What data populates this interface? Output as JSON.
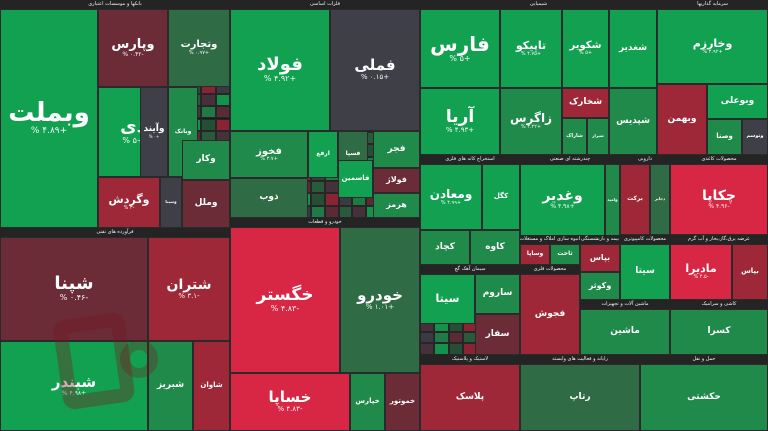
{
  "colors": {
    "pos_strong": "#12a150",
    "pos_mid": "#1f8a49",
    "pos_weak": "#2f6b45",
    "neutral": "#3f3f47",
    "neg_weak": "#6b2c38",
    "neg_mid": "#9e2838",
    "neg_strong": "#d82745"
  },
  "chart_data": {
    "type": "treemap",
    "sectors": [
      {
        "name": "بانکها و موسسات اعتباری",
        "tiles": [
          {
            "symbol": "وبملت",
            "change": "+۴.۸۹ %",
            "value": 4.89
          },
          {
            "symbol": "وپارس",
            "change": "-۰.۴۲ %",
            "value": -0.42
          },
          {
            "symbol": "وتجارت",
            "change": "+۰.۹۷ %",
            "value": 0.97
          },
          {
            "symbol": "دی",
            "change": "+۵ %",
            "value": 5
          },
          {
            "symbol": "وآیند",
            "change": "+۰ %",
            "value": 0
          },
          {
            "symbol": "وبانک",
            "change": "",
            "value": 3
          },
          {
            "symbol": "وگردش",
            "change": "-۳ %",
            "value": -3
          },
          {
            "symbol": "وسینا",
            "change": "",
            "value": 0
          },
          {
            "symbol": "وکار",
            "change": "",
            "value": 3
          },
          {
            "symbol": "وملل",
            "change": "",
            "value": -1
          }
        ]
      },
      {
        "name": "فلزات اساسی",
        "tiles": [
          {
            "symbol": "فولاد",
            "change": "+۴.۹۲ %",
            "value": 4.92
          },
          {
            "symbol": "فملی",
            "change": "+۰.۱۵ %",
            "value": 0.15
          },
          {
            "symbol": "فخوز",
            "change": "+۳.۷ %",
            "value": 3.7
          },
          {
            "symbol": "ارفع",
            "change": "",
            "value": 5
          },
          {
            "symbol": "فسپا",
            "change": "",
            "value": 1
          },
          {
            "symbol": "ذوب",
            "change": "",
            "value": 0.5
          },
          {
            "symbol": "فاسمین",
            "change": "",
            "value": 4
          },
          {
            "symbol": "فجر",
            "change": "",
            "value": 3
          },
          {
            "symbol": "فولاژ",
            "change": "",
            "value": -1
          },
          {
            "symbol": "هرمز",
            "change": "",
            "value": 2
          }
        ]
      },
      {
        "name": "شیمیایی",
        "tiles": [
          {
            "symbol": "فارس",
            "change": "+۵ %",
            "value": 5
          },
          {
            "symbol": "تاپیکو",
            "change": "+۴.۷۵ %",
            "value": 4.75
          },
          {
            "symbol": "شکویر",
            "change": "+۵ %",
            "value": 5
          },
          {
            "symbol": "شغدیر",
            "change": "",
            "value": 4.6
          },
          {
            "symbol": "شپدیس",
            "change": "",
            "value": 3
          },
          {
            "symbol": "آریا",
            "change": "+۴.۹۳ %",
            "value": 4.93
          },
          {
            "symbol": "زاگرس",
            "change": "+۳.۲۲ %",
            "value": 3.22
          },
          {
            "symbol": "شخارک",
            "change": "",
            "value": -2
          },
          {
            "symbol": "شاراک",
            "change": "",
            "value": 2
          },
          {
            "symbol": "شیراز",
            "change": "",
            "value": 3
          }
        ]
      },
      {
        "name": "سرمایه گذاریها",
        "tiles": [
          {
            "symbol": "وخارزم",
            "change": "+۴.۹۲ %",
            "value": 4.92
          },
          {
            "symbol": "وبهمن",
            "change": "",
            "value": -3
          },
          {
            "symbol": "وبوعلی",
            "change": "",
            "value": 4
          },
          {
            "symbol": "وصنا",
            "change": "",
            "value": 2
          },
          {
            "symbol": "وتوسم",
            "change": "",
            "value": 0
          }
        ]
      },
      {
        "name": "فرآورده های نفتی",
        "tiles": [
          {
            "symbol": "شپنا",
            "change": "-۰.۴۶ %",
            "value": -0.46
          },
          {
            "symbol": "شتران",
            "change": "-۳.۱ %",
            "value": -3.1
          },
          {
            "symbol": "شبندر",
            "change": "+۴.۹۸ %",
            "value": 4.98
          },
          {
            "symbol": "شبریز",
            "change": "",
            "value": 2
          },
          {
            "symbol": "شاوان",
            "change": "",
            "value": -2
          }
        ]
      },
      {
        "name": "خودرو و قطعات",
        "tiles": [
          {
            "symbol": "خگستر",
            "change": "-۴.۸۳ %",
            "value": -4.83
          },
          {
            "symbol": "خودرو",
            "change": "+۱.۰۱ %",
            "value": 1.01
          },
          {
            "symbol": "خساپا",
            "change": "-۴.۸۳ %",
            "value": -4.83
          },
          {
            "symbol": "خپارس",
            "change": "",
            "value": 2
          },
          {
            "symbol": "خموتور",
            "change": "",
            "value": -1
          }
        ]
      },
      {
        "name": "استخراج کانه های فلزی",
        "tiles": [
          {
            "symbol": "ومعادن",
            "change": "+۴.۹۹ %",
            "value": 4.99
          },
          {
            "symbol": "کگل",
            "change": "",
            "value": 4
          },
          {
            "symbol": "کچاد",
            "change": "",
            "value": 3
          },
          {
            "symbol": "کاوه",
            "change": "",
            "value": 2
          }
        ]
      },
      {
        "name": "چندرشته ای صنعتی",
        "tiles": [
          {
            "symbol": "وغدیر",
            "change": "+۴.۹۸ %",
            "value": 4.98
          },
          {
            "symbol": "وامید",
            "change": "",
            "value": 3
          }
        ]
      },
      {
        "name": "دارویی",
        "tiles": [
          {
            "symbol": "برکت",
            "change": "",
            "value": -2
          },
          {
            "symbol": "دجابر",
            "change": "",
            "value": 1
          }
        ]
      },
      {
        "name": "محصولات کاغذی",
        "tiles": [
          {
            "symbol": "چکاپا",
            "change": "-۴.۹۶ %",
            "value": -4.96
          }
        ]
      },
      {
        "name": "عرضه برق،گاز،بخار و آب گرم",
        "tiles": [
          {
            "symbol": "مادیرا",
            "change": "-۴.۵ %",
            "value": -4.5
          },
          {
            "symbol": "بپاس",
            "change": "",
            "value": -2
          }
        ]
      },
      {
        "name": "محصولات کامپیوتری",
        "tiles": [
          {
            "symbol": "سیتا",
            "change": "",
            "value": 4
          }
        ]
      },
      {
        "name": "سیمان آهک گچ",
        "tiles": [
          {
            "symbol": "سیتا",
            "change": "",
            "value": 4
          },
          {
            "symbol": "ساروم",
            "change": "",
            "value": 3
          },
          {
            "symbol": "سفار",
            "change": "",
            "value": -1
          }
        ]
      },
      {
        "name": "محصولات فلزی",
        "tiles": [
          {
            "symbol": "فجوش",
            "change": "",
            "value": -2
          }
        ]
      },
      {
        "name": "انبوه سازی املاک و مستغلات",
        "tiles": [
          {
            "symbol": "وساپا",
            "change": "",
            "value": -3
          },
          {
            "symbol": "ثاخت",
            "change": "",
            "value": 2
          }
        ]
      },
      {
        "name": "بیمه و بازنشستگی",
        "tiles": [
          {
            "symbol": "بپاس",
            "change": "",
            "value": -2
          },
          {
            "symbol": "وکوثر",
            "change": "",
            "value": 3
          }
        ]
      },
      {
        "name": "ماشین آلات و تجهیزات",
        "tiles": [
          {
            "symbol": "ماشین",
            "change": "",
            "value": 2
          }
        ]
      },
      {
        "name": "کاشی و سرامیک",
        "tiles": [
          {
            "symbol": "کسرا",
            "change": "",
            "value": 3
          }
        ]
      },
      {
        "name": "لاستیک و پلاستیک",
        "tiles": [
          {
            "symbol": "پلاسک",
            "change": "",
            "value": -3
          }
        ]
      },
      {
        "name": "رایانه و فعالیت های وابسته",
        "tiles": [
          {
            "symbol": "رتاپ",
            "change": "",
            "value": 1
          }
        ]
      },
      {
        "name": "حمل و نقل",
        "tiles": [
          {
            "symbol": "حکشتی",
            "change": "",
            "value": 3
          }
        ]
      }
    ]
  }
}
